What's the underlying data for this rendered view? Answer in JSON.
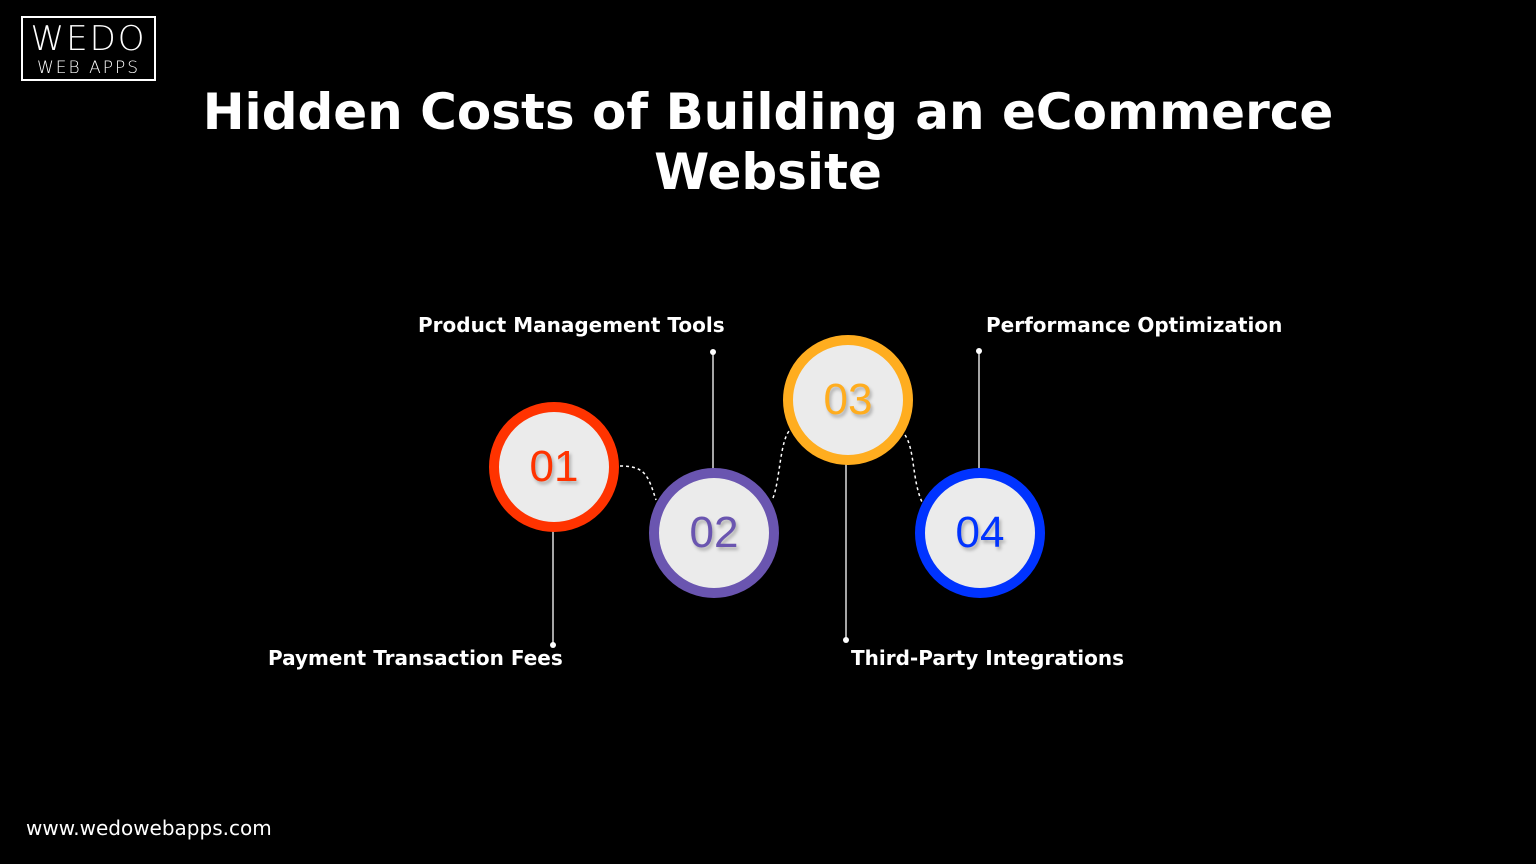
{
  "logo": {
    "line1": "WEDO",
    "line2": "WEB APPS"
  },
  "title": {
    "line1": "Hidden Costs of Building an eCommerce",
    "line2": "Website"
  },
  "steps": [
    {
      "number": "01",
      "label": "Payment Transaction Fees",
      "color": "#ff3300"
    },
    {
      "number": "02",
      "label": "Product Management Tools",
      "color": "#6a55b0"
    },
    {
      "number": "03",
      "label": "Third-Party Integrations",
      "color": "#ffad1f"
    },
    {
      "number": "04",
      "label": "Performance Optimization",
      "color": "#0033ff"
    }
  ],
  "footer": {
    "url": "www.wedowebapps.com"
  }
}
